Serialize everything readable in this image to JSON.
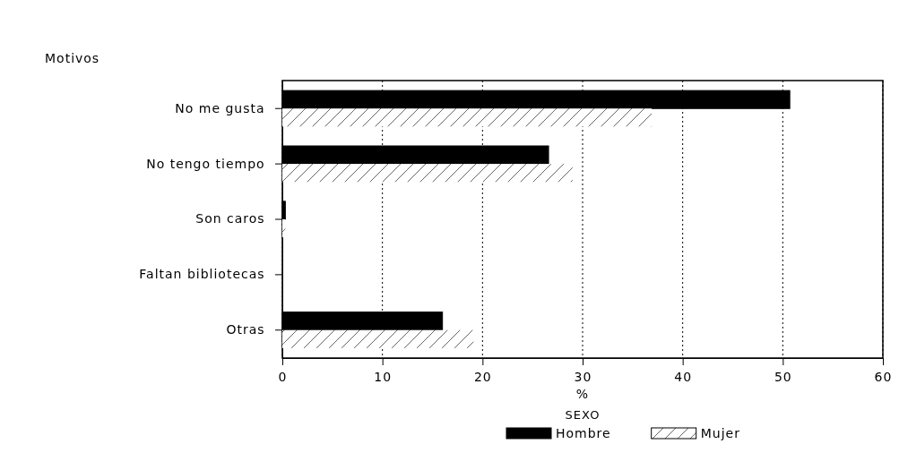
{
  "chart_data": {
    "type": "bar",
    "orientation": "horizontal",
    "ylabel": "Motivos",
    "xlabel": "%",
    "legend_title": "SEXO",
    "categories": [
      "No me gusta",
      "No tengo tiempo",
      "Son caros",
      "Faltan bibliotecas",
      "Otras"
    ],
    "series": [
      {
        "name": "Hombre",
        "color": "#000000",
        "values": [
          50.7,
          26.6,
          0.3,
          0,
          16.0
        ]
      },
      {
        "name": "Mujer",
        "color": "#ffffff",
        "values": [
          36.9,
          29.0,
          0.3,
          0,
          19.1
        ]
      }
    ],
    "xlim": [
      0,
      60
    ],
    "xticks": [
      0,
      10,
      20,
      30,
      40,
      50,
      60
    ],
    "grid": "x",
    "legend": "bottom"
  }
}
